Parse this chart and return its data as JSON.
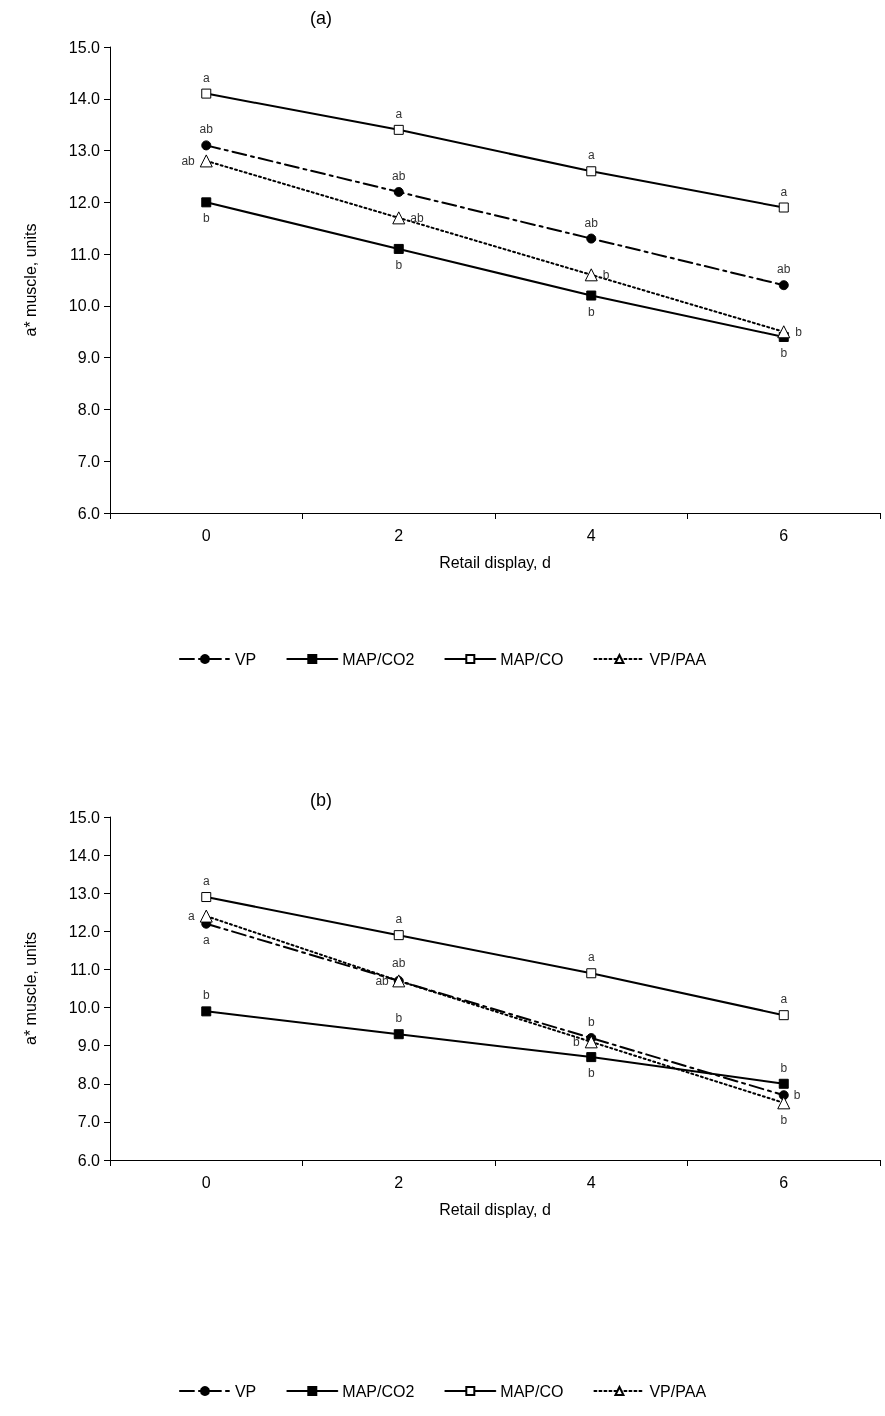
{
  "chart_data": [
    {
      "type": "line",
      "title": "(a)",
      "xlabel": "Retail display, d",
      "ylabel": "a* muscle, units",
      "categories": [
        "0",
        "2",
        "4",
        "6"
      ],
      "ylim": [
        6,
        15
      ],
      "yticks": [
        {
          "value": 6,
          "label": "6.0"
        },
        {
          "value": 7,
          "label": "7.0"
        },
        {
          "value": 8,
          "label": "8.0"
        },
        {
          "value": 9,
          "label": "9.0"
        },
        {
          "value": 10,
          "label": "10.0"
        },
        {
          "value": 11,
          "label": "11.0"
        },
        {
          "value": 12,
          "label": "12.0"
        },
        {
          "value": 13,
          "label": "13.0"
        },
        {
          "value": 14,
          "label": "14.0"
        },
        {
          "value": 15,
          "label": "15.0"
        }
      ],
      "grid": false,
      "legend": "bottom",
      "series": [
        {
          "name": "VP",
          "color": "#000000",
          "marker": "circle",
          "line_style": "dashed",
          "values": [
            13.1,
            12.2,
            11.3,
            10.4
          ],
          "value_labels": [
            "ab",
            "ab",
            "ab",
            "ab"
          ]
        },
        {
          "name": "MAP/CO2",
          "color": "#000000",
          "marker": "square",
          "line_style": "solid",
          "values": [
            12.0,
            11.1,
            10.2,
            9.4
          ],
          "value_labels": [
            "b",
            "b",
            "b",
            "b"
          ]
        },
        {
          "name": "MAP/CO",
          "color": "#000000",
          "marker": "square",
          "line_style": "solid",
          "values": [
            14.1,
            13.4,
            12.6,
            11.9
          ],
          "value_labels": [
            "a",
            "a",
            "a",
            "a"
          ]
        },
        {
          "name": "VP/PAA",
          "color": "#000000",
          "marker": "triangle",
          "line_style": "dotted",
          "values": [
            12.8,
            11.7,
            10.6,
            9.5
          ],
          "value_labels": [
            "ab",
            "ab",
            "b",
            "b"
          ]
        }
      ]
    },
    {
      "type": "line",
      "title": "(b)",
      "xlabel": "Retail display, d",
      "ylabel": "a* muscle, units",
      "categories": [
        "0",
        "2",
        "4",
        "6"
      ],
      "ylim": [
        6,
        15
      ],
      "yticks": [
        {
          "value": 6,
          "label": "6.0"
        },
        {
          "value": 7,
          "label": "7.0"
        },
        {
          "value": 8,
          "label": "8.0"
        },
        {
          "value": 9,
          "label": "9.0"
        },
        {
          "value": 10,
          "label": "10.0"
        },
        {
          "value": 11,
          "label": "11.0"
        },
        {
          "value": 12,
          "label": "12.0"
        },
        {
          "value": 13,
          "label": "13.0"
        },
        {
          "value": 14,
          "label": "14.0"
        },
        {
          "value": 15,
          "label": "15.0"
        }
      ],
      "grid": false,
      "legend": "bottom",
      "series": [
        {
          "name": "VP",
          "color": "#000000",
          "marker": "circle",
          "line_style": "dashed",
          "values": [
            12.2,
            10.7,
            9.2,
            7.7
          ],
          "value_labels": [
            "a",
            "ab",
            "b",
            "b"
          ]
        },
        {
          "name": "MAP/CO2",
          "color": "#000000",
          "marker": "square",
          "line_style": "solid",
          "values": [
            9.9,
            9.3,
            8.7,
            8.0
          ],
          "value_labels": [
            "b",
            "b",
            "b",
            "b"
          ]
        },
        {
          "name": "MAP/CO",
          "color": "#000000",
          "marker": "square",
          "line_style": "solid",
          "values": [
            12.9,
            11.9,
            10.9,
            9.8
          ],
          "value_labels": [
            "a",
            "a",
            "a",
            "a"
          ]
        },
        {
          "name": "VP/PAA",
          "color": "#000000",
          "marker": "triangle",
          "line_style": "dotted",
          "values": [
            12.4,
            10.7,
            9.1,
            7.5
          ],
          "value_labels": [
            "a",
            "ab",
            "b",
            "b"
          ]
        }
      ]
    }
  ]
}
